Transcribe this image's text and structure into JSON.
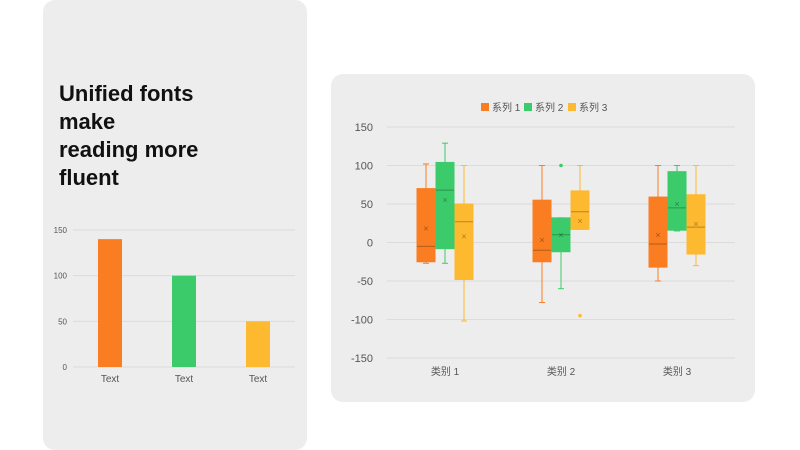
{
  "headline": {
    "lines": [
      "Unified fonts",
      "make",
      "reading more",
      "fluent"
    ]
  },
  "colors": {
    "series1": "#fa7d22",
    "series2": "#3ccb6a",
    "series3": "#fdb92f",
    "panel": "#ededee",
    "axis_text": "#555555",
    "grid": "#dcdcdc"
  },
  "chart_data": [
    {
      "type": "bar",
      "title": "",
      "xlabel": "",
      "ylabel": "",
      "ylim": [
        0,
        150
      ],
      "yticks": [
        "0",
        "50",
        "100",
        "150"
      ],
      "categories": [
        "Text",
        "Text",
        "Text"
      ],
      "values": [
        140,
        100,
        50
      ],
      "bar_colors": [
        "#fa7d22",
        "#3ccb6a",
        "#fdb92f"
      ],
      "grid": true
    },
    {
      "type": "box",
      "title": "",
      "xlabel": "",
      "ylabel": "",
      "ylim": [
        -150,
        150
      ],
      "yticks": [
        "150",
        "100",
        "50",
        "0",
        "-50",
        "-100",
        "-150"
      ],
      "categories": [
        "类别 1",
        "类别 2",
        "类别 3"
      ],
      "legend_position": "top",
      "grid": true,
      "series": [
        {
          "name": "系列 1",
          "color": "#fa7d22",
          "boxes": [
            {
              "min": -27,
              "q1": -25,
              "median": -5,
              "q3": 70,
              "max": 102,
              "mean": 18,
              "outliers": []
            },
            {
              "min": -78,
              "q1": -25,
              "median": -10,
              "q3": 55,
              "max": 100,
              "mean": 3,
              "outliers": []
            },
            {
              "min": -50,
              "q1": -32,
              "median": -2,
              "q3": 59,
              "max": 100,
              "mean": 10,
              "outliers": []
            }
          ]
        },
        {
          "name": "系列 2",
          "color": "#3ccb6a",
          "boxes": [
            {
              "min": -27,
              "q1": -8,
              "median": 68,
              "q3": 104,
              "max": 129,
              "mean": 55,
              "outliers": []
            },
            {
              "min": -60,
              "q1": -12,
              "median": 10,
              "q3": 32,
              "max": 32,
              "mean": 10,
              "outliers": [
                100
              ]
            },
            {
              "min": 15,
              "q1": 16,
              "median": 45,
              "q3": 92,
              "max": 100,
              "mean": 50,
              "outliers": []
            }
          ]
        },
        {
          "name": "系列 3",
          "color": "#fdb92f",
          "boxes": [
            {
              "min": -102,
              "q1": -48,
              "median": 27,
              "q3": 50,
              "max": 100,
              "mean": 8,
              "outliers": []
            },
            {
              "min": 17,
              "q1": 17,
              "median": 40,
              "q3": 67,
              "max": 100,
              "mean": 28,
              "outliers": [
                -95
              ]
            },
            {
              "min": -30,
              "q1": -15,
              "median": 20,
              "q3": 62,
              "max": 100,
              "mean": 24,
              "outliers": []
            }
          ]
        }
      ]
    }
  ]
}
